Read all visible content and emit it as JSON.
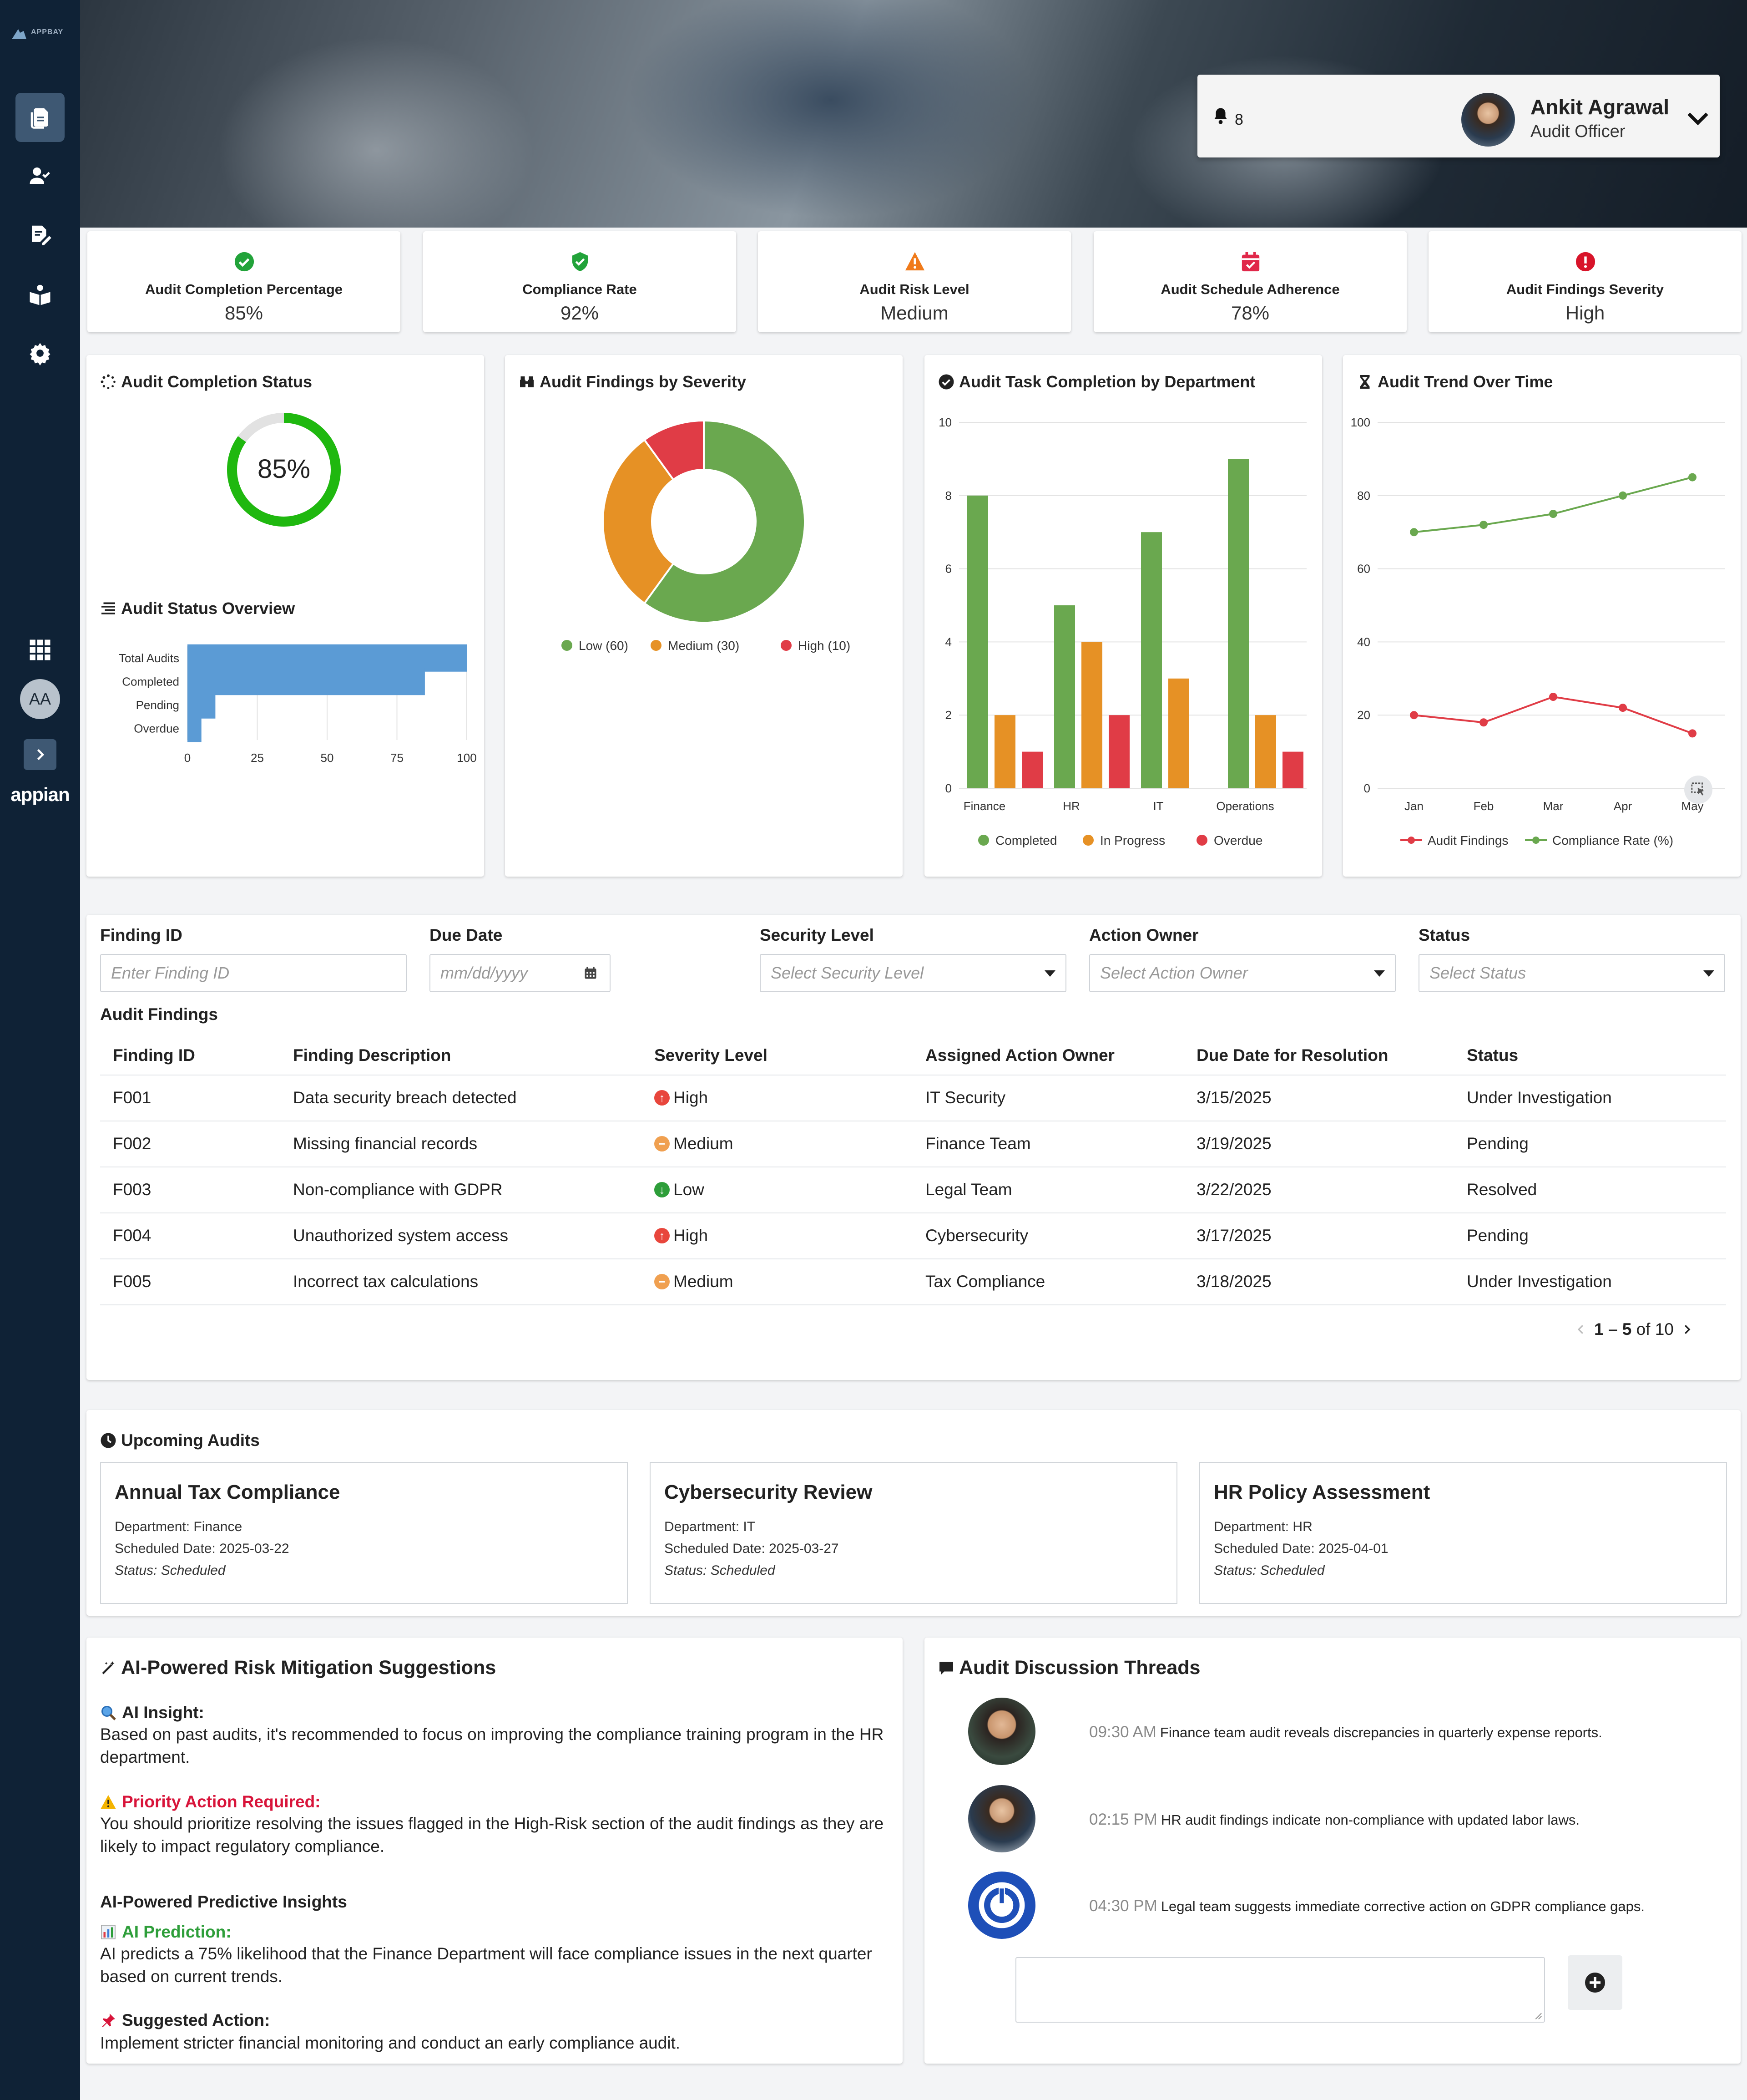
{
  "brand": {
    "logo_text": "APPBAY",
    "platform": "appian"
  },
  "sidebar": {
    "items": [
      {
        "name": "documents-icon",
        "active": true
      },
      {
        "name": "user-check-icon",
        "active": false
      },
      {
        "name": "edit-document-icon",
        "active": false
      },
      {
        "name": "audit-book-icon",
        "active": false
      },
      {
        "name": "gear-icon",
        "active": false
      }
    ],
    "avatar_initials": "AA"
  },
  "header": {
    "notification_count": "8",
    "user_name": "Ankit Agrawal",
    "user_role": "Audit Officer"
  },
  "kpis": [
    {
      "label": "Audit Completion Percentage",
      "value": "85%",
      "icon": "check-circle-icon",
      "color": "#22a33a"
    },
    {
      "label": "Compliance Rate",
      "value": "92%",
      "icon": "shield-check-icon",
      "color": "#22a33a"
    },
    {
      "label": "Audit Risk Level",
      "value": "Medium",
      "icon": "warning-triangle-icon",
      "color": "#f07a1a"
    },
    {
      "label": "Audit Schedule Adherence",
      "value": "78%",
      "icon": "calendar-check-icon",
      "color": "#e0284a"
    },
    {
      "label": "Audit Findings Severity",
      "value": "High",
      "icon": "alert-circle-icon",
      "color": "#d8142a"
    }
  ],
  "completion_status": {
    "title": "Audit Completion Status",
    "value": 85,
    "label": "85%"
  },
  "status_overview": {
    "title": "Audit Status Overview"
  },
  "severity_chart": {
    "title": "Audit Findings by Severity"
  },
  "department_chart": {
    "title": "Audit Task Completion by Department"
  },
  "trend_chart": {
    "title": "Audit Trend Over Time"
  },
  "chart_data": [
    {
      "type": "bar",
      "orientation": "horizontal",
      "categories": [
        "Total Audits",
        "Completed",
        "Pending",
        "Overdue"
      ],
      "values": [
        100,
        85,
        10,
        5
      ],
      "xlim": [
        0,
        100
      ],
      "xticks": [
        "0",
        "25",
        "50",
        "75",
        "100"
      ],
      "color": "#5b9bd5",
      "grid": true
    },
    {
      "type": "pie",
      "donut": true,
      "categories": [
        "Low (60)",
        "Medium (30)",
        "High (10)"
      ],
      "values": [
        60,
        30,
        10
      ],
      "colors": [
        "#6aa84f",
        "#e69125",
        "#e03c46"
      ],
      "legend": "bottom"
    },
    {
      "type": "bar",
      "categories": [
        "Finance",
        "HR",
        "IT",
        "Operations"
      ],
      "series": [
        {
          "name": "Completed",
          "values": [
            8,
            5,
            7,
            9
          ],
          "color": "#6aa84f"
        },
        {
          "name": "In Progress",
          "values": [
            2,
            4,
            3,
            2
          ],
          "color": "#e69125"
        },
        {
          "name": "Overdue",
          "values": [
            1,
            2,
            0,
            1
          ],
          "color": "#e03c46"
        }
      ],
      "ylim": [
        0,
        10
      ],
      "yticks": [
        "0",
        "2",
        "4",
        "6",
        "8",
        "10"
      ],
      "legend": "bottom",
      "grid": true
    },
    {
      "type": "line",
      "x": [
        "Jan",
        "Feb",
        "Mar",
        "Apr",
        "May"
      ],
      "series": [
        {
          "name": "Audit Findings",
          "values": [
            20,
            18,
            25,
            22,
            15
          ],
          "color": "#e03c46"
        },
        {
          "name": "Compliance Rate (%)",
          "values": [
            70,
            72,
            75,
            80,
            85
          ],
          "color": "#6aa84f"
        }
      ],
      "ylim": [
        0,
        100
      ],
      "yticks": [
        "0",
        "20",
        "40",
        "60",
        "80",
        "100"
      ],
      "legend": "bottom",
      "grid": true
    }
  ],
  "filters": {
    "finding_id": {
      "label": "Finding ID",
      "placeholder": "Enter Finding ID"
    },
    "due_date": {
      "label": "Due Date",
      "placeholder": "mm/dd/yyyy"
    },
    "security_level": {
      "label": "Security Level",
      "placeholder": "Select Security Level"
    },
    "action_owner": {
      "label": "Action Owner",
      "placeholder": "Select Action Owner"
    },
    "status": {
      "label": "Status",
      "placeholder": "Select Status"
    }
  },
  "findings": {
    "title": "Audit Findings",
    "columns": [
      "Finding ID",
      "Finding Description",
      "Severity Level",
      "Assigned Action Owner",
      "Due Date for Resolution",
      "Status"
    ],
    "rows": [
      {
        "id": "F001",
        "desc": "Data security breach detected",
        "severity": "High",
        "owner": "IT Security",
        "due": "3/15/2025",
        "status": "Under Investigation"
      },
      {
        "id": "F002",
        "desc": "Missing financial records",
        "severity": "Medium",
        "owner": "Finance Team",
        "due": "3/19/2025",
        "status": "Pending"
      },
      {
        "id": "F003",
        "desc": "Non-compliance with GDPR",
        "severity": "Low",
        "owner": "Legal Team",
        "due": "3/22/2025",
        "status": "Resolved"
      },
      {
        "id": "F004",
        "desc": "Unauthorized system access",
        "severity": "High",
        "owner": "Cybersecurity",
        "due": "3/17/2025",
        "status": "Pending"
      },
      {
        "id": "F005",
        "desc": "Incorrect tax calculations",
        "severity": "Medium",
        "owner": "Tax Compliance",
        "due": "3/18/2025",
        "status": "Under Investigation"
      }
    ],
    "pager": {
      "range": "1 – 5",
      "of": "of 10"
    }
  },
  "upcoming": {
    "title": "Upcoming Audits",
    "items": [
      {
        "title": "Annual Tax Compliance",
        "department": "Department: Finance",
        "date": "Scheduled Date: 2025-03-22",
        "status": "Status: Scheduled"
      },
      {
        "title": "Cybersecurity Review",
        "department": "Department: IT",
        "date": "Scheduled Date: 2025-03-27",
        "status": "Status: Scheduled"
      },
      {
        "title": "HR Policy Assessment",
        "department": "Department: HR",
        "date": "Scheduled Date: 2025-04-01",
        "status": "Status: Scheduled"
      }
    ]
  },
  "ai": {
    "title": "AI-Powered Risk Mitigation Suggestions",
    "insight_title": "AI Insight:",
    "insight_text": "Based on past audits, it's recommended to focus on improving the compliance training program in the HR department.",
    "priority_title": "Priority Action Required:",
    "priority_text": "You should prioritize resolving the issues flagged in the High-Risk section of the audit findings as they are likely to impact regulatory compliance.",
    "predictive_title": "AI-Powered Predictive Insights",
    "prediction_title": "AI Prediction:",
    "prediction_text": "AI predicts a 75% likelihood that the Finance Department will face compliance issues in the next quarter based on current trends.",
    "suggested_title": "Suggested Action:",
    "suggested_text": "Implement stricter financial monitoring and conduct an early compliance audit.",
    "priority_color": "#d8143a",
    "prediction_color": "#2e9e3a"
  },
  "threads": {
    "title": "Audit Discussion Threads",
    "items": [
      {
        "time": "09:30 AM",
        "text": "Finance team audit reveals discrepancies in quarterly expense reports."
      },
      {
        "time": "02:15 PM",
        "text": "HR audit findings indicate non-compliance with updated labor laws."
      },
      {
        "time": "04:30 PM",
        "text": "Legal team suggests immediate corrective action on GDPR compliance gaps."
      }
    ]
  }
}
